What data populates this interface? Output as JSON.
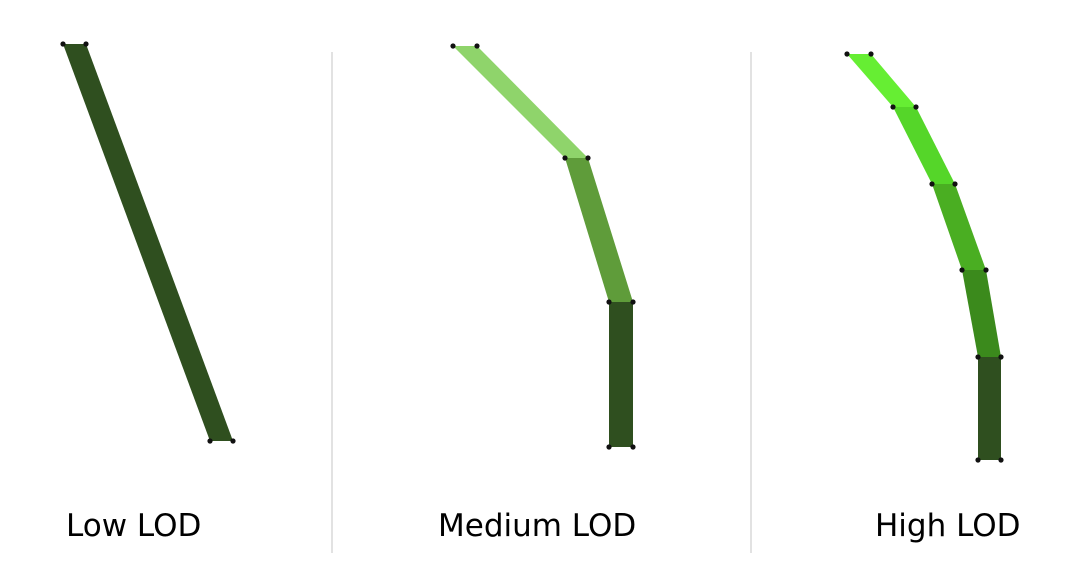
{
  "panels": [
    {
      "label": "Low LOD",
      "segment_colors": [
        "#2f4f1f"
      ]
    },
    {
      "label": "Medium LOD",
      "segment_colors": [
        "#8fd46b",
        "#5f9c3a",
        "#2f4f1f"
      ]
    },
    {
      "label": "High LOD",
      "segment_colors": [
        "#66ee33",
        "#55d629",
        "#4aae22",
        "#3b8a1c",
        "#2f4f1f"
      ]
    }
  ],
  "colors": {
    "background": "#ffffff",
    "divider": "#d9d9d9",
    "vertex": "#111111"
  }
}
